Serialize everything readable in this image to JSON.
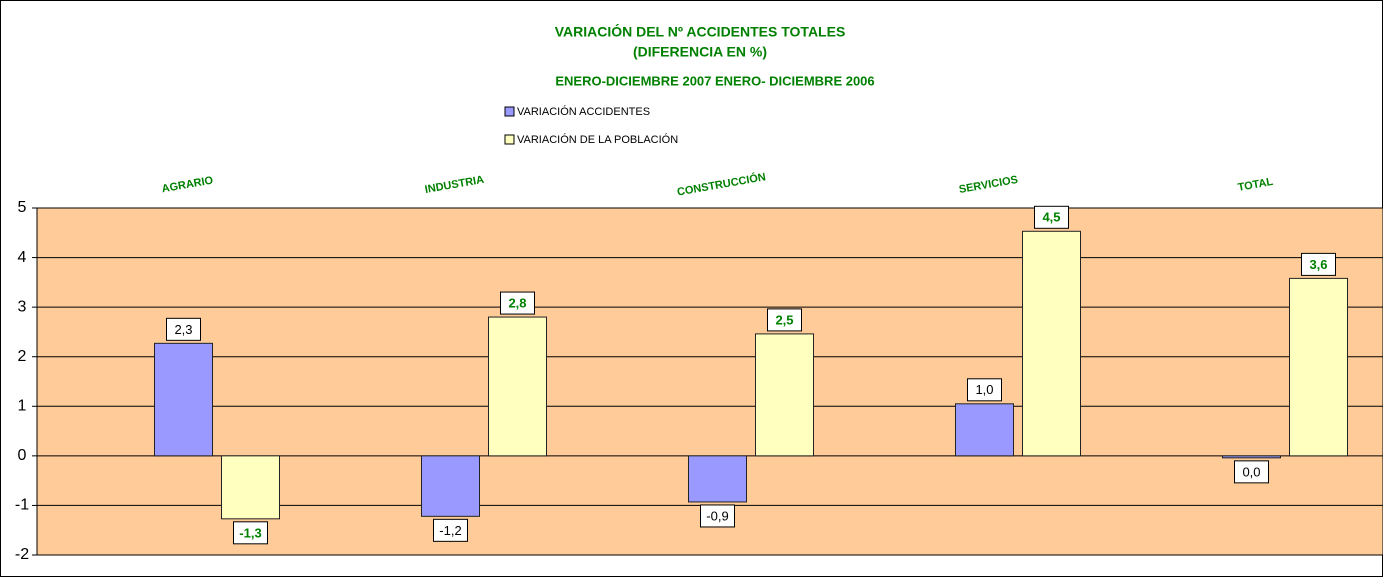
{
  "chart_data": {
    "type": "bar",
    "title": [
      "VARIACIÓN DEL Nº ACCIDENTES TOTALES",
      "(DIFERENCIA EN %)"
    ],
    "subtitle": "ENERO-DICIEMBRE 2007 ENERO- DICIEMBRE 2006",
    "categories": [
      "AGRARIO",
      "INDUSTRIA",
      "CONSTRUCCIÓN",
      "SERVICIOS",
      "TOTAL"
    ],
    "series": [
      {
        "name": "VARIACIÓN ACCIDENTES",
        "color": "#9999ff",
        "values": [
          2.27,
          -1.22,
          -0.93,
          1.05,
          -0.04
        ],
        "value_labels": [
          "2,3",
          "-1,2",
          "-0,9",
          "1,0",
          "0,0"
        ]
      },
      {
        "name": "VARIACIÓN DE LA POBLACIÓN",
        "color": "#ffffc0",
        "values": [
          -1.27,
          2.8,
          2.46,
          4.53,
          3.58
        ],
        "value_labels": [
          "-1,3",
          "2,8",
          "2,5",
          "4,5",
          "3,6"
        ]
      }
    ],
    "ylim": [
      -2,
      5
    ],
    "yticks": [
      -2,
      -1,
      0,
      1,
      2,
      3,
      4,
      5
    ],
    "grid": true,
    "plot_background": "#ffcc99",
    "text_color": "#008000"
  }
}
